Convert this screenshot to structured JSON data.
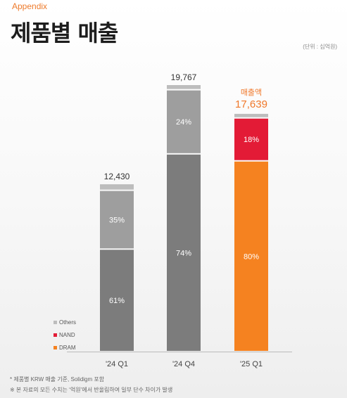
{
  "header": {
    "section": "Appendix",
    "title": "제품별 매출",
    "unit": "(단위 : 십억원)"
  },
  "footnotes": [
    "* 제품별 KRW 매출 기준, Solidigm 포함",
    "※ 본 자료의 모든 수치는 ‘억원’에서 반올림하여 일부 단수 차이가 발생"
  ],
  "colors": {
    "Others": "#bdbdbd",
    "NAND": "#e31b36",
    "DRAM": "#f58220",
    "DRAM_gray": "#7c7c7c",
    "NAND_gray": "#9e9e9e",
    "highlight_label": "#f0782a"
  },
  "chart_data": {
    "type": "bar",
    "stacked": true,
    "categories": [
      "'24 Q1",
      "'24 Q4",
      "'25 Q1"
    ],
    "totals": [
      12430,
      19767,
      17639
    ],
    "total_labels": [
      "12,430",
      "19,767",
      "17,639"
    ],
    "series": [
      {
        "name": "DRAM",
        "shares": [
          61,
          74,
          80
        ],
        "labels": [
          "61%",
          "74%",
          "80%"
        ]
      },
      {
        "name": "NAND",
        "shares": [
          35,
          24,
          18
        ],
        "labels": [
          "35%",
          "24%",
          "18%"
        ]
      },
      {
        "name": "Others",
        "shares": [
          4,
          2,
          2
        ],
        "labels": [
          "",
          "",
          ""
        ]
      }
    ],
    "highlight_index": 2,
    "highlight_caption": "매출액",
    "legend": [
      "Others",
      "NAND",
      "DRAM"
    ],
    "legend_position": "bottom-left"
  }
}
